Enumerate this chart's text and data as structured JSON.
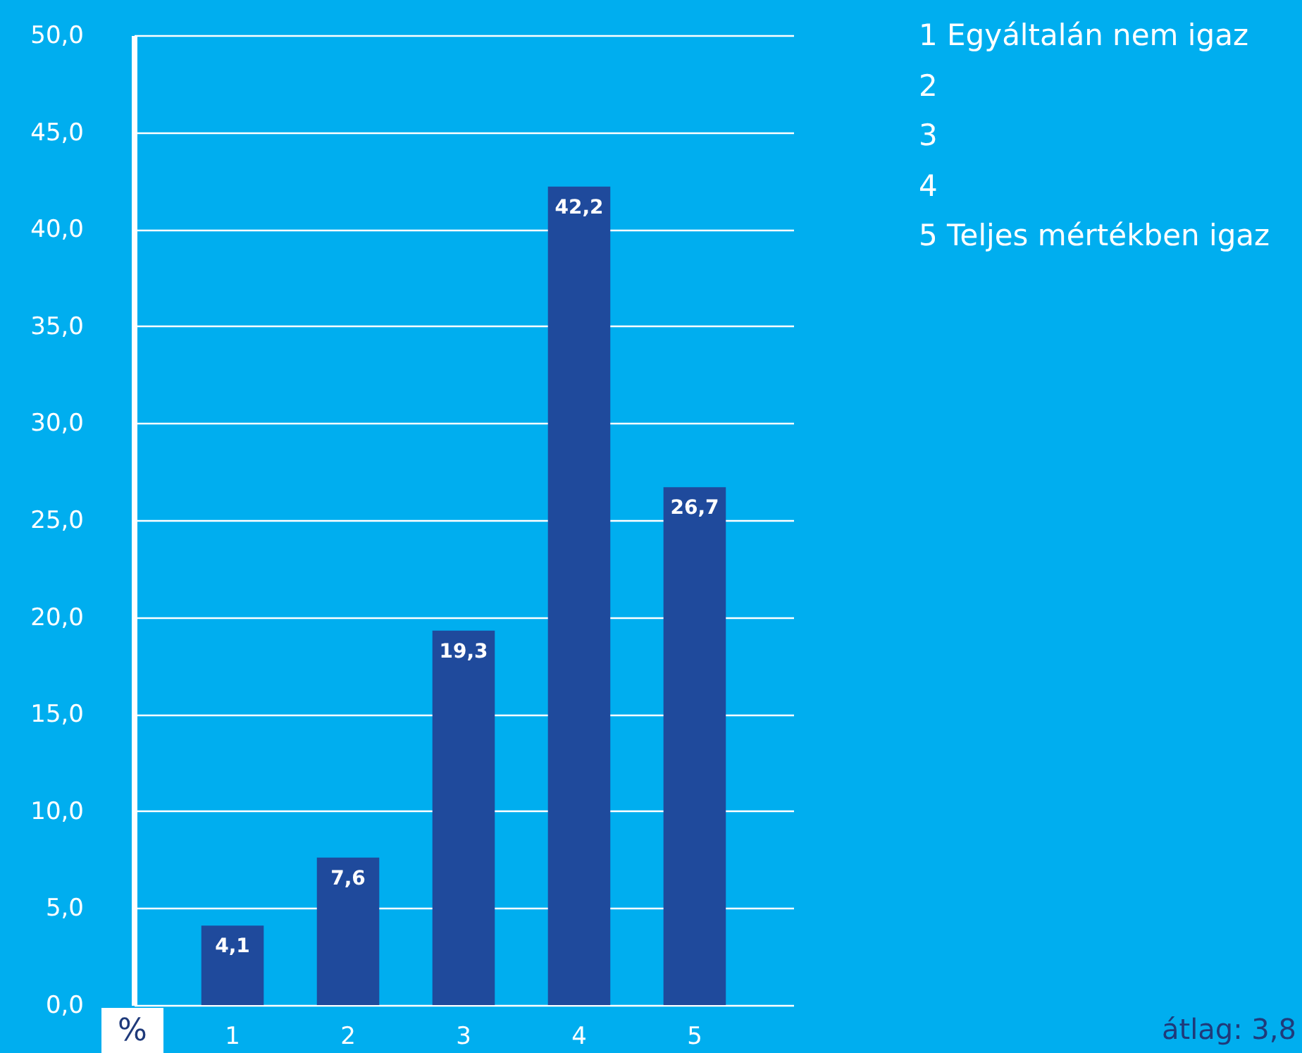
{
  "chart_data": {
    "type": "bar",
    "categories": [
      "1",
      "2",
      "3",
      "4",
      "5"
    ],
    "values": [
      4.1,
      7.6,
      19.3,
      42.2,
      26.7
    ],
    "value_labels": [
      "4,1",
      "7,6",
      "19,3",
      "42,2",
      "26,7"
    ],
    "color": "#1f4a9c",
    "ylabel": "%",
    "ylim": [
      0,
      50
    ],
    "yticks": [
      {
        "value": 0,
        "label": "0,0"
      },
      {
        "value": 5,
        "label": "5,0"
      },
      {
        "value": 10,
        "label": "10,0"
      },
      {
        "value": 15,
        "label": "15,0"
      },
      {
        "value": 20,
        "label": "20,0"
      },
      {
        "value": 25,
        "label": "25,0"
      },
      {
        "value": 30,
        "label": "30,0"
      },
      {
        "value": 35,
        "label": "35,0"
      },
      {
        "value": 40,
        "label": "40,0"
      },
      {
        "value": 45,
        "label": "45,0"
      },
      {
        "value": 50,
        "label": "50,0"
      }
    ],
    "grid": "y",
    "annotations": [
      "1 Egyáltalán nem igaz",
      "2",
      "3",
      "4",
      "5 Teljes mértékben igaz",
      "átlag: 3,8"
    ]
  }
}
